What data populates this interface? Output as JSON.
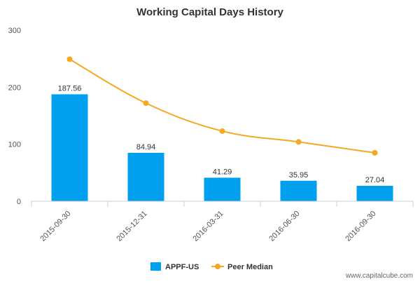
{
  "chart_data": {
    "type": "bar",
    "title": "Working Capital Days History",
    "categories": [
      "2015-09-30",
      "2015-12-31",
      "2016-03-31",
      "2016-06-30",
      "2016-09-30"
    ],
    "series": [
      {
        "name": "APPF-US",
        "type": "bar",
        "values": [
          187.56,
          84.94,
          41.29,
          35.95,
          27.04
        ],
        "data_labels": [
          "187.56",
          "84.94",
          "41.29",
          "35.95",
          "27.04"
        ]
      },
      {
        "name": "Peer Median",
        "type": "line",
        "values": [
          249,
          172,
          123,
          104,
          85
        ]
      }
    ],
    "ylim": [
      0,
      300
    ],
    "yticks": [
      "0",
      "100",
      "200",
      "300"
    ],
    "grid": false,
    "legend_position": "bottom-center",
    "colors": {
      "bar": "#00a0ee",
      "line": "#f7a823"
    }
  },
  "watermark": "www.capitalcube.com"
}
